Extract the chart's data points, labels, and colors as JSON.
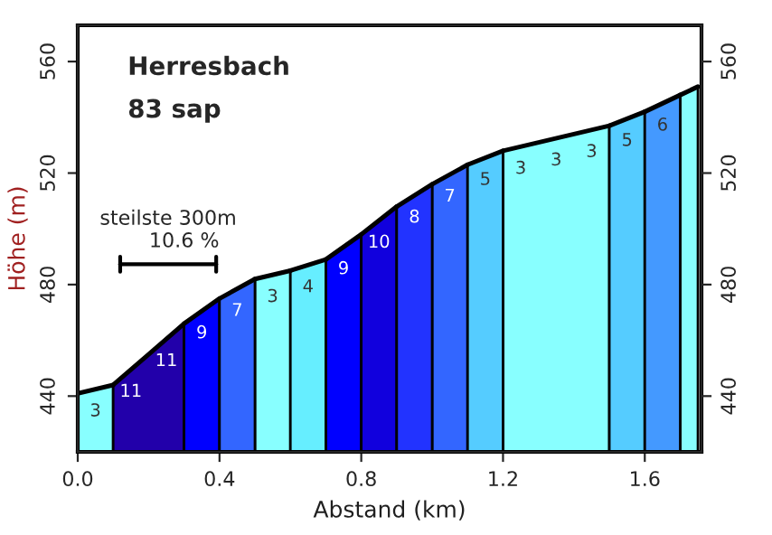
{
  "chart_data": {
    "type": "area",
    "title": "Herresbach",
    "subtitle": "83 sap",
    "xlabel": "Abstand (km)",
    "ylabel": "Höhe (m)",
    "series": [
      {
        "color": "#88ffff",
        "x": [
          0.0,
          0.1,
          0.3,
          0.5,
          0.6,
          1.0,
          1.2,
          1.3,
          1.4,
          1.5,
          1.6,
          1.7,
          1.75
        ],
        "values": [
          441,
          444,
          null,
          482,
          485,
          null,
          528,
          531,
          534,
          537,
          null,
          548,
          551
        ]
      },
      {
        "color": "#2200aa",
        "x": [
          0.1,
          0.2,
          0.3
        ],
        "values": [
          444,
          455,
          466
        ]
      },
      {
        "color": "#0000ff",
        "x": [
          0.3,
          0.4,
          0.55,
          0.7,
          0.8
        ],
        "values": [
          466,
          475,
          null,
          489,
          498
        ]
      },
      {
        "color": "#3366ff",
        "x": [
          0.4,
          0.5,
          0.75,
          1.0,
          1.1
        ],
        "values": [
          475,
          482,
          null,
          516,
          523
        ]
      },
      {
        "color": "#66eeff",
        "x": [
          0.6,
          0.7
        ],
        "values": [
          485,
          489
        ]
      },
      {
        "color": "#1100dd",
        "x": [
          0.8,
          0.9
        ],
        "values": [
          498,
          508
        ]
      },
      {
        "color": "#2233ff",
        "x": [
          0.9,
          1.0
        ],
        "values": [
          508,
          516
        ]
      },
      {
        "color": "#55ccff",
        "x": [
          1.1,
          1.2,
          1.35,
          1.5,
          1.6
        ],
        "values": [
          523,
          528,
          null,
          537,
          542
        ]
      },
      {
        "color": "#4499ff",
        "x": [
          1.6,
          1.7
        ],
        "values": [
          542,
          548
        ]
      }
    ],
    "annotations": [
      "3",
      "11",
      "11",
      "9",
      "7",
      "3",
      "4",
      "9",
      "10",
      "8",
      "7",
      "5",
      "3",
      "3",
      "3",
      "5",
      "6",
      "steilste 300m\n     10.6 %"
    ],
    "xlim": [
      0.0,
      1.76
    ],
    "xticks": [
      {
        "value": 0,
        "label": "0.0"
      },
      0.4,
      0.8,
      1.2,
      1.6
    ],
    "ylim": [
      420,
      573
    ],
    "yticks": [
      440,
      480,
      520,
      560
    ],
    "y2lim": [
      420,
      573
    ],
    "y2ticks": [
      440,
      480,
      520,
      560
    ],
    "grid": false,
    "legend": false
  }
}
